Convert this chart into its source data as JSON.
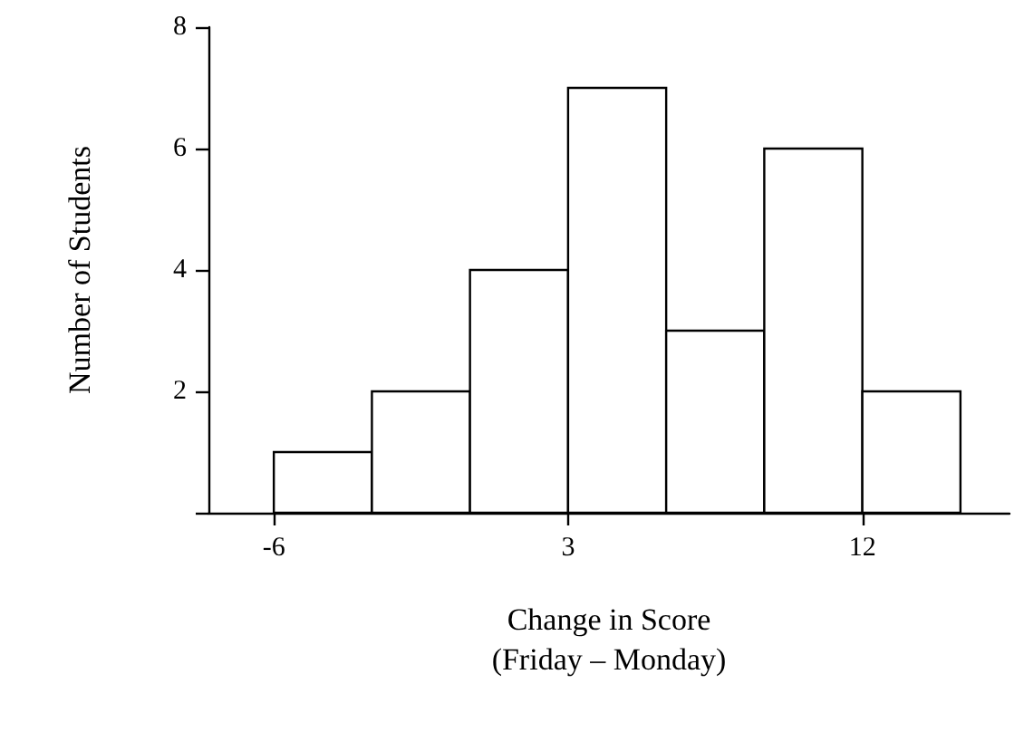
{
  "chart_data": {
    "type": "histogram",
    "xlabel": "Change in Score\n(Friday – Monday)",
    "ylabel": "Number of Students",
    "bins": [
      -6,
      -3,
      0,
      3,
      6,
      9,
      12,
      15
    ],
    "values": [
      1,
      2,
      4,
      7,
      3,
      6,
      2
    ],
    "color": "#ffffff",
    "xlim": [
      -8,
      16.5
    ],
    "xticks": [
      -6,
      3,
      12
    ],
    "ylim": [
      0,
      8
    ],
    "yticks": [
      {
        "value": 0,
        "label": null
      },
      2,
      4,
      6,
      8
    ],
    "grid": false
  }
}
